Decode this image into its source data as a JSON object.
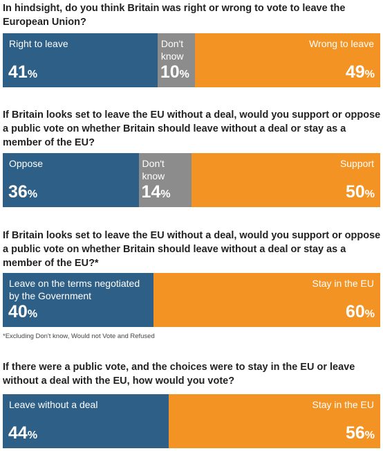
{
  "colors": {
    "blue": "#2e5f86",
    "grey": "#8c8c8c",
    "orange": "#f39324"
  },
  "chart_data": [
    {
      "type": "bar",
      "orientation": "stacked-horizontal-100",
      "title": "In hindsight, do you think Britain was right or wrong to vote to leave the European Union?",
      "categories": [
        "Right to leave",
        "Don't know",
        "Wrong to leave"
      ],
      "values": [
        41,
        10,
        49
      ],
      "unit": "%",
      "colors": [
        "#2e5f86",
        "#8c8c8c",
        "#f39324"
      ]
    },
    {
      "type": "bar",
      "orientation": "stacked-horizontal-100",
      "title": "If Britain looks set to leave the EU without a deal, would you support or oppose a public vote on whether Britain should leave without a deal or stay as a member of the EU?",
      "categories": [
        "Oppose",
        "Don't know",
        "Support"
      ],
      "values": [
        36,
        14,
        50
      ],
      "unit": "%",
      "colors": [
        "#2e5f86",
        "#8c8c8c",
        "#f39324"
      ]
    },
    {
      "type": "bar",
      "orientation": "stacked-horizontal-100",
      "title": "If Britain looks set to leave the EU without a deal, would you support or oppose a public vote on whether Britain should leave without a deal or stay as a member of the EU?*",
      "categories": [
        "Leave on the terms negotiated by the Government",
        "Stay in the EU"
      ],
      "values": [
        40,
        60
      ],
      "unit": "%",
      "colors": [
        "#2e5f86",
        "#f39324"
      ],
      "footnote": "*Excluding Don't know, Would not Vote and Refused"
    },
    {
      "type": "bar",
      "orientation": "stacked-horizontal-100",
      "title": "If there were a public vote, and the choices were to stay in the EU or leave without a deal with the EU, how would you vote?",
      "categories": [
        "Leave without a deal",
        "Stay in the EU"
      ],
      "values": [
        44,
        56
      ],
      "unit": "%",
      "colors": [
        "#2e5f86",
        "#f39324"
      ]
    }
  ]
}
